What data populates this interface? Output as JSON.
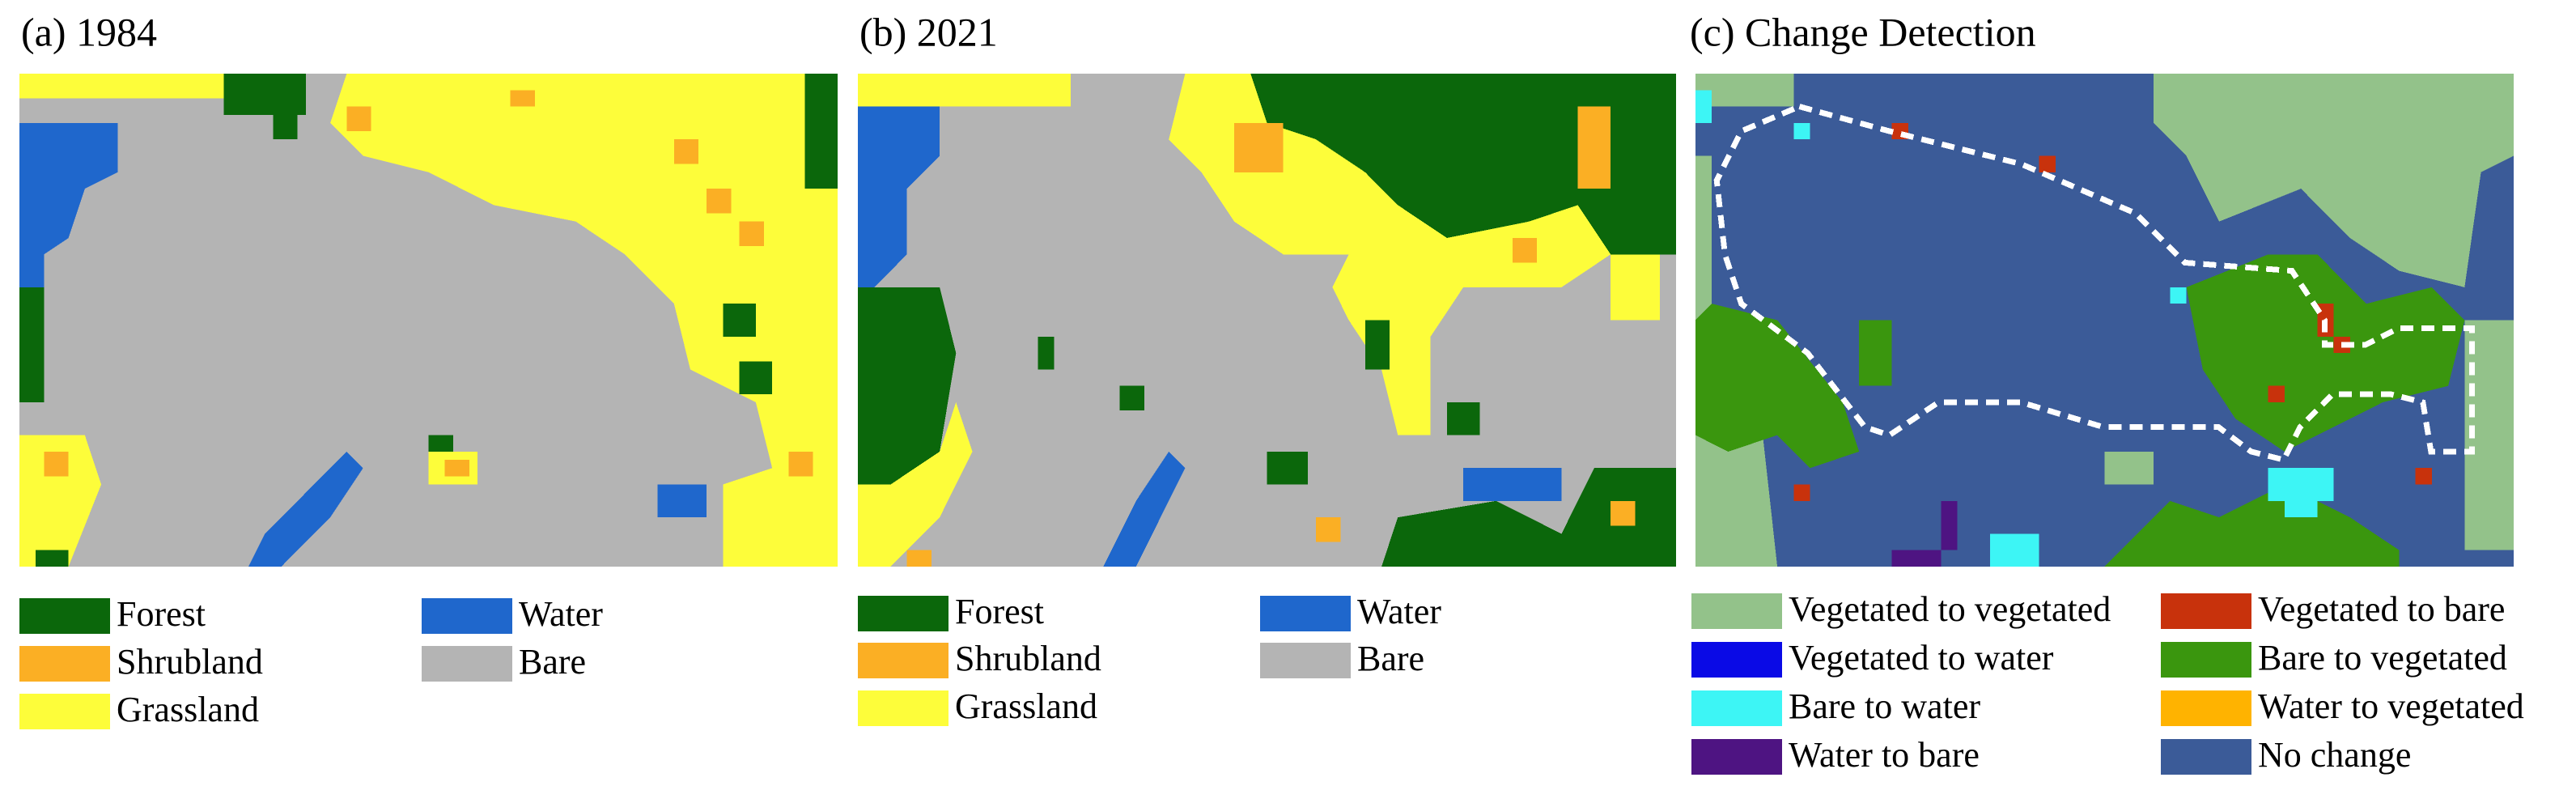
{
  "panels": [
    {
      "title": "(a) 1984",
      "legend": [
        {
          "label": "Forest",
          "color": "#0b670b"
        },
        {
          "label": "Shrubland",
          "color": "#fbaf24"
        },
        {
          "label": "Grassland",
          "color": "#fdfd3a"
        },
        {
          "label": "Water",
          "color": "#1f67cc"
        },
        {
          "label": "Bare",
          "color": "#b4b4b4"
        }
      ]
    },
    {
      "title": "(b) 2021",
      "legend": [
        {
          "label": "Forest",
          "color": "#0b670b"
        },
        {
          "label": "Shrubland",
          "color": "#fbaf24"
        },
        {
          "label": "Grassland",
          "color": "#fdfd3a"
        },
        {
          "label": "Water",
          "color": "#1f67cc"
        },
        {
          "label": "Bare",
          "color": "#b4b4b4"
        }
      ]
    },
    {
      "title": "(c) Change Detection",
      "legend": [
        {
          "label": "Vegetated to vegetated",
          "color": "#93c28a"
        },
        {
          "label": "Vegetated to water",
          "color": "#0a0ae6"
        },
        {
          "label": "Bare to water",
          "color": "#3df5f5"
        },
        {
          "label": "Water to bare",
          "color": "#4e1482"
        },
        {
          "label": "Vegetated to bare",
          "color": "#c8320c"
        },
        {
          "label": "Bare to vegetated",
          "color": "#3a960e"
        },
        {
          "label": "Water to vegetated",
          "color": "#ffb300"
        },
        {
          "label": "No change",
          "color": "#3b5b98"
        }
      ]
    }
  ]
}
